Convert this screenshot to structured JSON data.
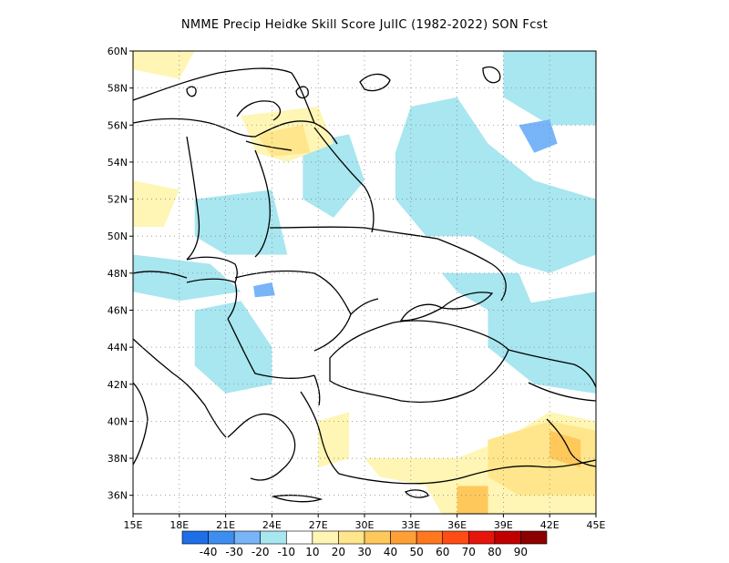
{
  "title": "NMME Precip Heidke Skill Score JulIC (1982-2022) SON Fcst",
  "map": {
    "lon_range": [
      15,
      45
    ],
    "lat_range": [
      35,
      60
    ],
    "lon_ticks": [
      "15E",
      "18E",
      "21E",
      "24E",
      "27E",
      "30E",
      "33E",
      "36E",
      "39E",
      "42E",
      "45E"
    ],
    "lat_ticks": [
      "36N",
      "38N",
      "40N",
      "42N",
      "44N",
      "46N",
      "48N",
      "50N",
      "52N",
      "54N",
      "56N",
      "58N",
      "60N"
    ],
    "grid": "dotted",
    "regions": [
      {
        "name": "negative-skill-north-russia",
        "level": -10,
        "points": [
          [
            39,
            60
          ],
          [
            45,
            60
          ],
          [
            45,
            56
          ],
          [
            42,
            56
          ],
          [
            39,
            57.5
          ]
        ]
      },
      {
        "name": "negative-skill-russia-core",
        "level": -20,
        "points": [
          [
            40,
            56
          ],
          [
            42,
            56.3
          ],
          [
            42.5,
            55
          ],
          [
            41,
            54.5
          ]
        ]
      },
      {
        "name": "negative-skill-baltic-east",
        "level": -10,
        "points": [
          [
            33,
            57
          ],
          [
            36,
            57.5
          ],
          [
            38,
            55
          ],
          [
            41,
            53
          ],
          [
            45,
            52
          ],
          [
            45,
            49
          ],
          [
            42,
            48
          ],
          [
            40,
            48.5
          ],
          [
            37,
            50
          ],
          [
            34,
            50
          ],
          [
            32,
            52
          ],
          [
            32,
            54.5
          ]
        ]
      },
      {
        "name": "negative-skill-belarus",
        "level": -10,
        "points": [
          [
            26,
            55
          ],
          [
            29,
            55.5
          ],
          [
            30,
            53
          ],
          [
            28,
            51
          ],
          [
            26,
            52
          ]
        ]
      },
      {
        "name": "negative-skill-ukraine-south",
        "level": -10,
        "points": [
          [
            35,
            48
          ],
          [
            40,
            48
          ],
          [
            41,
            46
          ],
          [
            38,
            46
          ],
          [
            36,
            47
          ]
        ]
      },
      {
        "name": "negative-skill-caucasus",
        "level": -10,
        "points": [
          [
            38,
            46
          ],
          [
            45,
            47
          ],
          [
            45,
            41.5
          ],
          [
            41,
            42
          ],
          [
            38,
            44
          ]
        ]
      },
      {
        "name": "negative-skill-poland",
        "level": -10,
        "points": [
          [
            19,
            52
          ],
          [
            24,
            52.5
          ],
          [
            25,
            49
          ],
          [
            21,
            49
          ],
          [
            19,
            50
          ]
        ]
      },
      {
        "name": "negative-skill-austria",
        "level": -10,
        "points": [
          [
            15,
            49
          ],
          [
            20,
            48.5
          ],
          [
            22,
            47
          ],
          [
            18,
            46.5
          ],
          [
            15,
            47
          ]
        ]
      },
      {
        "name": "negative-skill-serbia",
        "level": -10,
        "points": [
          [
            19,
            46
          ],
          [
            22,
            46.5
          ],
          [
            24,
            44
          ],
          [
            24,
            42
          ],
          [
            21,
            41.5
          ],
          [
            19,
            43
          ]
        ]
      },
      {
        "name": "negative-skill-hungary-core",
        "level": -20,
        "points": [
          [
            22.8,
            47.3
          ],
          [
            24,
            47.5
          ],
          [
            24.2,
            46.8
          ],
          [
            22.9,
            46.7
          ]
        ]
      },
      {
        "name": "positive-skill-baltic",
        "level": 10,
        "points": [
          [
            22,
            56.5
          ],
          [
            27,
            57
          ],
          [
            28,
            55
          ],
          [
            25,
            54
          ],
          [
            23,
            54.5
          ]
        ]
      },
      {
        "name": "positive-skill-latvia-core",
        "level": 20,
        "points": [
          [
            23,
            55.5
          ],
          [
            26,
            56
          ],
          [
            26.5,
            54.5
          ],
          [
            24,
            54.3
          ]
        ]
      },
      {
        "name": "positive-skill-northwest",
        "level": 10,
        "points": [
          [
            15,
            60
          ],
          [
            19,
            60
          ],
          [
            18,
            58.5
          ],
          [
            15,
            59
          ]
        ]
      },
      {
        "name": "positive-skill-germany",
        "level": 10,
        "points": [
          [
            15,
            53
          ],
          [
            18,
            52.5
          ],
          [
            17,
            50.5
          ],
          [
            15,
            50.5
          ]
        ]
      },
      {
        "name": "positive-skill-turkey",
        "level": 10,
        "points": [
          [
            27,
            40
          ],
          [
            29,
            40.5
          ],
          [
            29,
            38
          ],
          [
            27,
            37.5
          ]
        ]
      },
      {
        "name": "positive-skill-turkey-south",
        "level": 10,
        "points": [
          [
            30,
            38
          ],
          [
            33,
            38
          ],
          [
            36,
            38
          ],
          [
            39,
            39
          ],
          [
            42,
            40.5
          ],
          [
            45,
            40
          ],
          [
            45,
            35
          ],
          [
            35,
            35
          ],
          [
            34,
            36.5
          ],
          [
            31,
            37
          ]
        ]
      },
      {
        "name": "positive-skill-east-turkey",
        "level": 20,
        "points": [
          [
            38,
            39
          ],
          [
            42,
            40
          ],
          [
            45,
            39.5
          ],
          [
            45,
            36
          ],
          [
            40,
            36
          ],
          [
            38,
            37
          ]
        ]
      },
      {
        "name": "positive-skill-syria",
        "level": 30,
        "points": [
          [
            36,
            36.5
          ],
          [
            38,
            36.5
          ],
          [
            38,
            35
          ],
          [
            36,
            35
          ]
        ]
      },
      {
        "name": "positive-skill-iran-border",
        "level": 30,
        "points": [
          [
            42,
            39.5
          ],
          [
            44,
            39
          ],
          [
            44,
            37.5
          ],
          [
            42,
            38
          ]
        ]
      }
    ]
  },
  "colorbar": {
    "levels": [
      -40,
      -30,
      -20,
      -10,
      10,
      20,
      30,
      40,
      50,
      60,
      70,
      80,
      90
    ],
    "labels": [
      "-40",
      "-30",
      "-20",
      "-10",
      "10",
      "20",
      "30",
      "40",
      "50",
      "60",
      "70",
      "80",
      "90"
    ],
    "colors": [
      "#1e6ee8",
      "#3c8ef0",
      "#78b4f8",
      "#a8e6f0",
      "#ffffff",
      "#fff5b4",
      "#ffe68c",
      "#ffc85a",
      "#ffa036",
      "#ff7820",
      "#ff4c14",
      "#e6140a",
      "#c00000",
      "#8c0000"
    ]
  }
}
